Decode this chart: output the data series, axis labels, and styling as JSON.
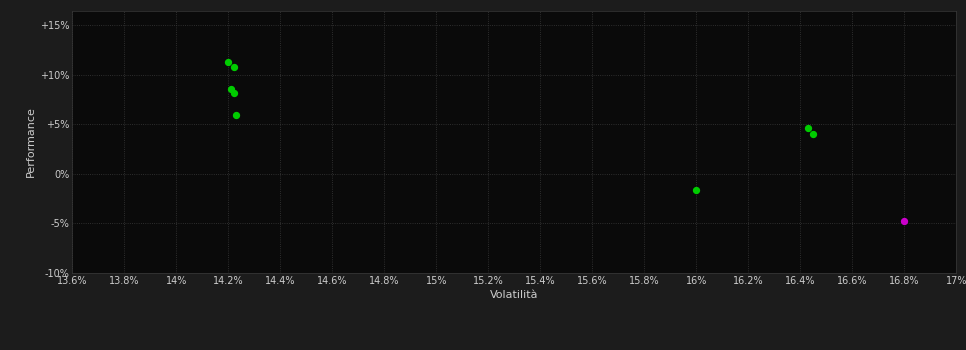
{
  "background_color": "#1c1c1c",
  "plot_bg_color": "#0a0a0a",
  "grid_color": "#3a3a3a",
  "text_color": "#cccccc",
  "xlabel": "Volatilità",
  "ylabel": "Performance",
  "xlim": [
    0.136,
    0.17
  ],
  "ylim": [
    -0.1,
    0.165
  ],
  "xticks": [
    0.136,
    0.138,
    0.14,
    0.142,
    0.144,
    0.146,
    0.148,
    0.15,
    0.152,
    0.154,
    0.156,
    0.158,
    0.16,
    0.162,
    0.164,
    0.166,
    0.168,
    0.17
  ],
  "xtick_labels": [
    "13.6%",
    "13.8%",
    "14%",
    "14.2%",
    "14.4%",
    "14.6%",
    "14.8%",
    "15%",
    "15.2%",
    "15.4%",
    "15.6%",
    "15.8%",
    "16%",
    "16.2%",
    "16.4%",
    "16.6%",
    "16.8%",
    "17%"
  ],
  "yticks": [
    -0.1,
    -0.05,
    0.0,
    0.05,
    0.1,
    0.15
  ],
  "ytick_labels": [
    "-10%",
    "-5%",
    "0%",
    "+5%",
    "+10%",
    "+15%"
  ],
  "green_points": [
    [
      0.142,
      0.113
    ],
    [
      0.1422,
      0.108
    ],
    [
      0.1421,
      0.086
    ],
    [
      0.1422,
      0.082
    ],
    [
      0.1423,
      0.06
    ],
    [
      0.1643,
      0.046
    ],
    [
      0.1645,
      0.04
    ],
    [
      0.16,
      -0.016
    ]
  ],
  "magenta_points": [
    [
      0.168,
      -0.048
    ]
  ],
  "green_color": "#00cc00",
  "magenta_color": "#cc00cc",
  "dot_size": 18
}
